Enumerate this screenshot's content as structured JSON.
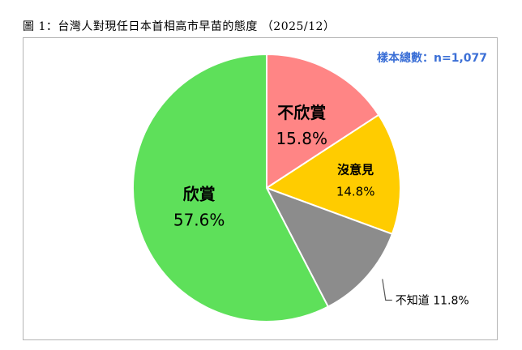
{
  "figure_title": "圖 1：台灣人對現任日本首相高市早苗的態度 （2025/12）",
  "sample_note": "樣本總數：n=1,077",
  "chart_data": {
    "type": "pie",
    "title": "圖 1：台灣人對現任日本首相高市早苗的態度 （2025/12）",
    "start_angle_deg": 0,
    "direction": "clockwise",
    "slices": [
      {
        "label": "不欣賞",
        "value": 15.8,
        "value_label": "15.8%",
        "color": "#ff8585"
      },
      {
        "label": "沒意見",
        "value": 14.8,
        "value_label": "14.8%",
        "color": "#ffcc00"
      },
      {
        "label": "不知道",
        "value": 11.8,
        "value_label": "11.8%",
        "color": "#8c8c8c"
      },
      {
        "label": "欣賞",
        "value": 57.6,
        "value_label": "57.6%",
        "color": "#5ee05a"
      }
    ],
    "legend": "none"
  }
}
